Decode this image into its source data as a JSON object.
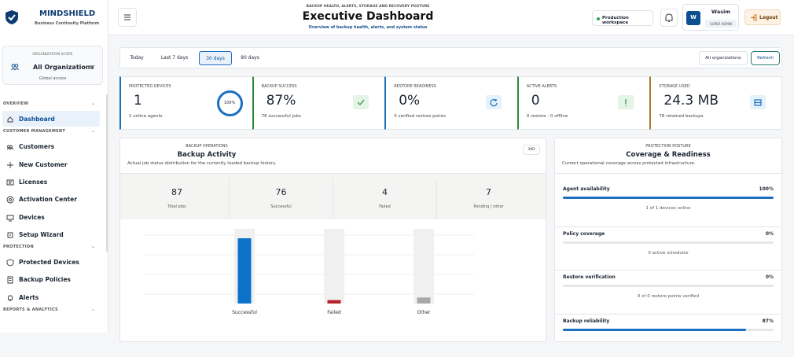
{
  "sidebar": {
    "brand": "MINDSHIELD",
    "tagline": "Business Continuity Platform",
    "scope": {
      "label": "ORGANIZATION SCOPE",
      "name": "All Organizations",
      "note": "Global access"
    },
    "sections": [
      {
        "title": "OVERVIEW",
        "items": [
          "Dashboard"
        ]
      },
      {
        "title": "CUSTOMER MANAGEMENT",
        "items": [
          "Customers",
          "New Customer",
          "Licenses",
          "Activation Center",
          "Devices",
          "Setup Wizard"
        ]
      },
      {
        "title": "PROTECTION",
        "items": [
          "Protected Devices",
          "Backup Policies",
          "Alerts"
        ]
      },
      {
        "title": "REPORTS & ANALYTICS",
        "items": []
      }
    ]
  },
  "header": {
    "eyebrow": "BACKUP HEALTH, ALERTS, STORAGE AND RECOVERY POSTURE",
    "title": "Executive Dashboard",
    "subtitle": "Overview of backup health, alerts, and system status",
    "workspace": "Production workspace",
    "user": {
      "initial": "W",
      "name": "Wasim",
      "role": "SUPER ADMIN"
    },
    "logout": "Logout"
  },
  "filters": {
    "ranges": [
      "Today",
      "Last 7 days",
      "30 days",
      "90 days"
    ],
    "active": 2,
    "org": "All organizations",
    "refresh": "Refresh"
  },
  "kpis": [
    {
      "label": "PROTECTED DEVICES",
      "value": "1",
      "sub": "1 online agents",
      "ring": "100%",
      "color": "#1a6fc0"
    },
    {
      "label": "BACKUP SUCCESS",
      "value": "87%",
      "sub": "76 successful jobs",
      "color": "#2f8a3c"
    },
    {
      "label": "RESTORE READINESS",
      "value": "0%",
      "sub": "0 verified restore points",
      "color": "#1a6fc0"
    },
    {
      "label": "ACTIVE ALERTS",
      "value": "0",
      "sub": "0 restore - 0 offline",
      "color": "#2f8a3c"
    },
    {
      "label": "STORAGE USED",
      "value": "24.3 MB",
      "sub": "78 retained backups",
      "color": "#a8742a"
    }
  ],
  "activity": {
    "eyebrow": "BACKUP OPERATIONS",
    "title": "Backup Activity",
    "description": "Actual job status distribution for the currently loaded backup history.",
    "period": "30D",
    "stats": [
      {
        "value": 87,
        "label": "Total jobs"
      },
      {
        "value": 76,
        "label": "Successful"
      },
      {
        "value": 4,
        "label": "Failed"
      },
      {
        "value": 7,
        "label": "Pending / other"
      }
    ],
    "chart": {
      "categories": [
        "Successful",
        "Failed",
        "Other"
      ],
      "colors": [
        "#0a72c9",
        "#b3232d",
        "#a9a9a9"
      ]
    }
  },
  "posture": {
    "eyebrow": "PROTECTION POSTURE",
    "title": "Coverage & Readiness",
    "description": "Current operational coverage across protected infrastructure.",
    "rows": [
      {
        "label": "Agent availability",
        "value": 100,
        "value_label": "100%",
        "note": "1 of 1 devices online"
      },
      {
        "label": "Policy coverage",
        "value": 0,
        "value_label": "0%",
        "note": "0 active schedules"
      },
      {
        "label": "Restore verification",
        "value": 0,
        "value_label": "0%",
        "note": "0 of 0 restore points verified"
      },
      {
        "label": "Backup reliability",
        "value": 87,
        "value_label": "87%"
      }
    ]
  }
}
